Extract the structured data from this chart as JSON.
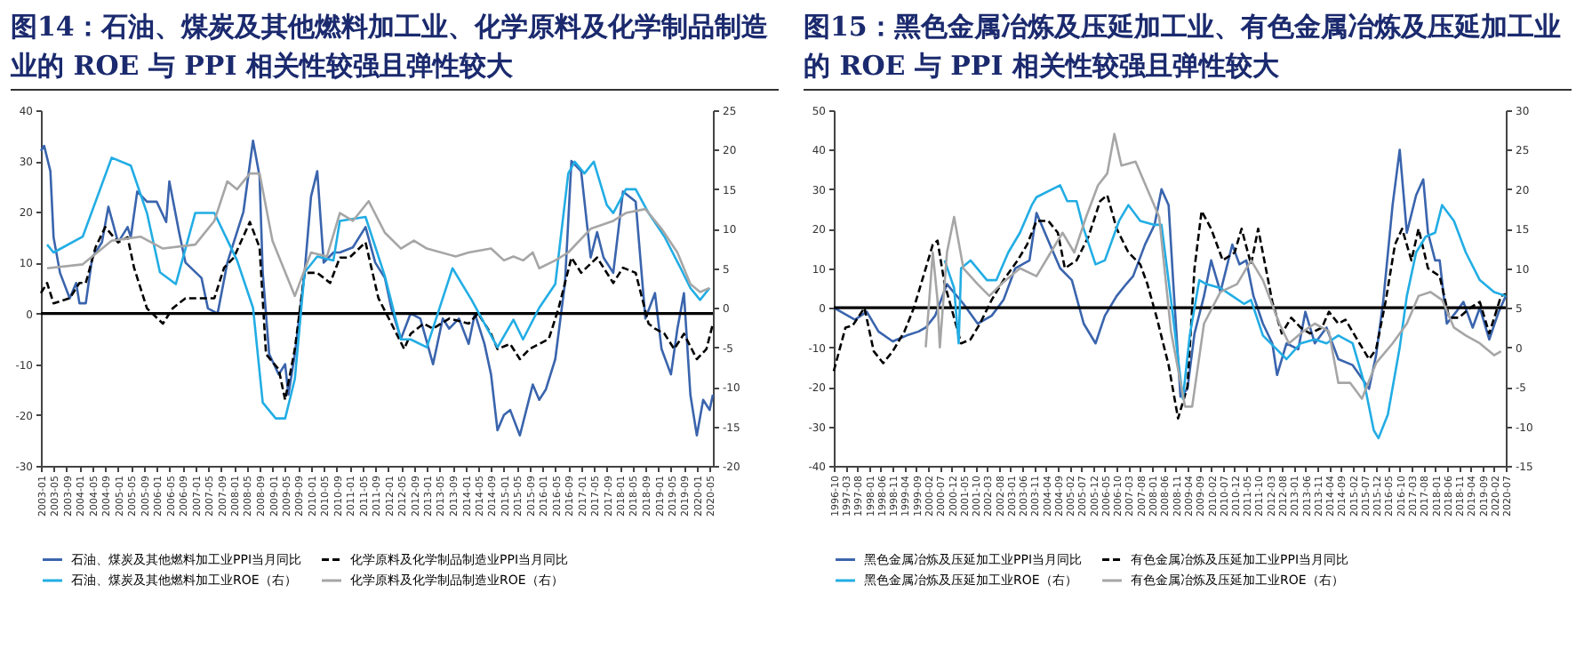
{
  "chart_data": [
    {
      "type": "line",
      "title": "图14：石油、煤炭及其他燃料加工业、化学原料及化学制品制造业的 ROE 与 PPI 相关性较强且弹性较大",
      "legend": "bottom",
      "xlim": [
        "2003-01",
        "2020-06"
      ],
      "xticks": [
        "2003-01",
        "2003-05",
        "2003-09",
        "2004-01",
        "2004-05",
        "2004-09",
        "2005-01",
        "2005-05",
        "2005-09",
        "2006-01",
        "2006-05",
        "2006-09",
        "2007-01",
        "2007-05",
        "2007-09",
        "2008-01",
        "2008-05",
        "2008-09",
        "2009-01",
        "2009-05",
        "2009-09",
        "2010-01",
        "2010-05",
        "2010-09",
        "2011-01",
        "2011-05",
        "2011-09",
        "2012-01",
        "2012-05",
        "2012-09",
        "2013-01",
        "2013-05",
        "2013-09",
        "2014-01",
        "2014-05",
        "2014-09",
        "2015-01",
        "2015-05",
        "2015-09",
        "2016-01",
        "2016-05",
        "2016-09",
        "2017-01",
        "2017-05",
        "2017-09",
        "2018-01",
        "2018-05",
        "2018-09",
        "2019-01",
        "2019-05",
        "2019-09",
        "2020-01",
        "2020-05"
      ],
      "ylim": [
        -30,
        40
      ],
      "yticks": [
        -30,
        -20,
        -10,
        0,
        10,
        20,
        30,
        40
      ],
      "y2lim": [
        -20,
        25
      ],
      "y2ticks": [
        -20,
        -15,
        -10,
        -5,
        0,
        5,
        10,
        15,
        20,
        25
      ],
      "ref_lines": [
        {
          "axis": "y",
          "value": 0,
          "color": "#000000"
        }
      ],
      "series": [
        {
          "name": "石油、煤炭及其他燃料加工业PPI当月同比",
          "color": "#3a64ad",
          "axis": "y",
          "line_style": "solid",
          "x": [
            "2003-01",
            "2003-02",
            "2003-04",
            "2003-05",
            "2003-07",
            "2003-10",
            "2003-12",
            "2004-01",
            "2004-03",
            "2004-05",
            "2004-08",
            "2004-10",
            "2005-01",
            "2005-04",
            "2005-05",
            "2005-07",
            "2005-10",
            "2006-01",
            "2006-04",
            "2006-05",
            "2006-08",
            "2006-10",
            "2007-03",
            "2007-05",
            "2007-08",
            "2007-11",
            "2008-04",
            "2008-07",
            "2008-09",
            "2008-10",
            "2008-12",
            "2009-03",
            "2009-05",
            "2009-06",
            "2009-08",
            "2009-11",
            "2010-01",
            "2010-03",
            "2010-05",
            "2010-08",
            "2010-10",
            "2011-02",
            "2011-06",
            "2011-09",
            "2011-12",
            "2012-02",
            "2012-05",
            "2012-08",
            "2012-11",
            "2013-03",
            "2013-06",
            "2013-08",
            "2013-11",
            "2014-02",
            "2014-04",
            "2014-07",
            "2014-09",
            "2014-11",
            "2015-01",
            "2015-03",
            "2015-06",
            "2015-08",
            "2015-10",
            "2015-12",
            "2016-02",
            "2016-05",
            "2016-08",
            "2016-10",
            "2017-01",
            "2017-04",
            "2017-06",
            "2017-08",
            "2017-11",
            "2018-02",
            "2018-06",
            "2018-09",
            "2018-12",
            "2019-02",
            "2019-05",
            "2019-07",
            "2019-09",
            "2019-11",
            "2020-01",
            "2020-03",
            "2020-05",
            "2020-06"
          ],
          "values": [
            32,
            33,
            28,
            15,
            8,
            3,
            6,
            2,
            2,
            11,
            14,
            21,
            14,
            17,
            15,
            24,
            22,
            22,
            18,
            26,
            16,
            10,
            7,
            1,
            0,
            10,
            20,
            34,
            27,
            8,
            -8,
            -12,
            -10,
            -16,
            -8,
            8,
            23,
            28,
            10,
            12,
            12,
            13,
            17,
            10,
            7,
            1,
            -5,
            0,
            -1,
            -10,
            -1,
            -3,
            -1,
            -6,
            0,
            -6,
            -12,
            -23,
            -20,
            -19,
            -24,
            -19,
            -14,
            -17,
            -15,
            -9,
            6,
            30,
            28,
            11,
            16,
            11,
            8,
            24,
            22,
            -1,
            4,
            -7,
            -12,
            -3,
            4,
            -16,
            -24,
            -17,
            -19,
            -16
          ]
        },
        {
          "name": "化学原料及化学制品制造业PPI当月同比",
          "color": "#000000",
          "axis": "y",
          "line_style": "dashed",
          "x": [
            "2003-01",
            "2003-03",
            "2003-05",
            "2003-10",
            "2004-01",
            "2004-03",
            "2004-06",
            "2004-09",
            "2005-01",
            "2005-04",
            "2005-06",
            "2005-10",
            "2006-03",
            "2006-06",
            "2006-10",
            "2007-03",
            "2007-07",
            "2007-10",
            "2008-01",
            "2008-06",
            "2008-09",
            "2008-11",
            "2009-03",
            "2009-05",
            "2009-08",
            "2009-11",
            "2010-03",
            "2010-07",
            "2010-10",
            "2011-01",
            "2011-06",
            "2011-10",
            "2012-02",
            "2012-06",
            "2012-08",
            "2012-12",
            "2013-03",
            "2013-08",
            "2014-02",
            "2014-05",
            "2014-09",
            "2014-11",
            "2015-03",
            "2015-06",
            "2015-09",
            "2015-12",
            "2016-03",
            "2016-06",
            "2016-10",
            "2017-01",
            "2017-06",
            "2017-11",
            "2018-02",
            "2018-06",
            "2018-10",
            "2018-12",
            "2019-03",
            "2019-06",
            "2019-09",
            "2020-01",
            "2020-04",
            "2020-06"
          ],
          "values": [
            4,
            6,
            2,
            3,
            6,
            6,
            13,
            17,
            14,
            15,
            9,
            1,
            -2,
            1,
            3,
            3,
            3,
            9,
            11,
            18,
            13,
            -8,
            -11,
            -17,
            -7,
            8,
            8,
            6,
            11,
            11,
            14,
            3,
            -2,
            -7,
            -4,
            -2,
            -3,
            -1,
            -2,
            0,
            -4,
            -7,
            -6,
            -9,
            -7,
            -6,
            -5,
            1,
            11,
            8,
            11,
            6,
            9,
            8,
            -2,
            -3,
            -4,
            -7,
            -4,
            -9,
            -7,
            -2
          ]
        },
        {
          "name": "石油、煤炭及其他燃料加工业ROE（右）",
          "color": "#22ade4",
          "axis": "y2",
          "line_style": "solid",
          "x": [
            "2003-03",
            "2003-05",
            "2004-02",
            "2004-11",
            "2005-05",
            "2005-10",
            "2006-02",
            "2006-07",
            "2007-01",
            "2007-07",
            "2008-02",
            "2008-07",
            "2008-10",
            "2009-02",
            "2009-05",
            "2009-08",
            "2009-11",
            "2010-03",
            "2010-08",
            "2010-10",
            "2011-06",
            "2011-08",
            "2011-12",
            "2012-05",
            "2012-08",
            "2013-01",
            "2013-09",
            "2014-03",
            "2014-09",
            "2014-11",
            "2015-04",
            "2015-07",
            "2015-12",
            "2016-05",
            "2016-09",
            "2016-11",
            "2017-02",
            "2017-05",
            "2017-09",
            "2017-11",
            "2018-03",
            "2018-06",
            "2018-10",
            "2019-03",
            "2019-08",
            "2019-11",
            "2020-02",
            "2020-05"
          ],
          "values": [
            8,
            7,
            9,
            19,
            18,
            12,
            4.5,
            3,
            12,
            12,
            6,
            0,
            -12,
            -14,
            -14,
            -9,
            4.5,
            6.5,
            6,
            11,
            11.5,
            9,
            4,
            -4,
            -4,
            -5,
            5,
            1,
            -3.5,
            -5,
            -1.5,
            -4,
            0,
            3,
            17,
            18.5,
            17,
            18.5,
            13,
            12,
            15,
            15,
            12,
            9,
            5,
            2.5,
            1,
            2.5
          ]
        },
        {
          "name": "化学原料及化学制品制造业ROE（右）",
          "color": "#a6a6a6",
          "axis": "y2",
          "line_style": "solid",
          "x": [
            "2003-03",
            "2004-02",
            "2004-11",
            "2005-08",
            "2006-03",
            "2007-01",
            "2007-07",
            "2007-11",
            "2008-02",
            "2008-06",
            "2008-09",
            "2009-01",
            "2009-08",
            "2010-01",
            "2010-06",
            "2010-10",
            "2011-02",
            "2011-07",
            "2011-12",
            "2012-05",
            "2012-09",
            "2013-01",
            "2013-10",
            "2014-02",
            "2014-09",
            "2015-01",
            "2015-04",
            "2015-07",
            "2015-10",
            "2015-12",
            "2016-05",
            "2016-09",
            "2017-04",
            "2017-11",
            "2018-03",
            "2018-09",
            "2019-02",
            "2019-07",
            "2019-11",
            "2020-02",
            "2020-05"
          ],
          "values": [
            5,
            5.5,
            8.5,
            9,
            7.5,
            8,
            11,
            16,
            15,
            17,
            17,
            8.5,
            1.5,
            7,
            6.5,
            12,
            11,
            13.5,
            9.5,
            7.5,
            8.5,
            7.5,
            6.5,
            7,
            7.5,
            6,
            6.5,
            6,
            7,
            5,
            6,
            7,
            10,
            11,
            12,
            12.5,
            10,
            7,
            3,
            2,
            2.5
          ]
        }
      ]
    },
    {
      "type": "line",
      "title": "图15：黑色金属冶炼及压延加工业、有色金属冶炼及压延加工业的 ROE 与 PPI 相关性较强且弹性较大",
      "legend": "bottom",
      "xlim": [
        "1996-10",
        "2020-07"
      ],
      "xticks": [
        "1996-10",
        "1997-03",
        "1997-08",
        "1998-01",
        "1998-06",
        "1998-11",
        "1999-04",
        "1999-09",
        "2000-02",
        "2000-07",
        "2000-12",
        "2001-05",
        "2001-10",
        "2002-03",
        "2002-08",
        "2003-01",
        "2003-06",
        "2003-11",
        "2004-04",
        "2004-09",
        "2005-02",
        "2005-07",
        "2005-12",
        "2006-05",
        "2006-10",
        "2007-03",
        "2007-08",
        "2008-01",
        "2008-06",
        "2008-11",
        "2009-04",
        "2009-09",
        "2010-02",
        "2010-07",
        "2010-12",
        "2011-05",
        "2011-10",
        "2012-03",
        "2012-08",
        "2013-01",
        "2013-06",
        "2013-11",
        "2014-04",
        "2014-09",
        "2015-02",
        "2015-07",
        "2015-12",
        "2016-05",
        "2016-10",
        "2017-03",
        "2017-08",
        "2018-01",
        "2018-06",
        "2018-11",
        "2019-04",
        "2019-09",
        "2020-02",
        "2020-07"
      ],
      "ylim": [
        -40,
        50
      ],
      "yticks": [
        -40,
        -30,
        -20,
        -10,
        0,
        10,
        20,
        30,
        40,
        50
      ],
      "y2lim": [
        -15,
        30
      ],
      "y2ticks": [
        -15,
        -10,
        -5,
        0,
        5,
        10,
        15,
        20,
        25,
        30
      ],
      "ref_lines": [
        {
          "axis": "y",
          "value": 0,
          "color": "#000000"
        }
      ],
      "series": [
        {
          "name": "黑色金属冶炼及压延加工业PPI当月同比",
          "color": "#3a64ad",
          "axis": "y",
          "line_style": "solid",
          "x": [
            "1996-10",
            "1997-07",
            "1997-12",
            "1998-05",
            "1998-11",
            "1999-05",
            "1999-10",
            "2000-01",
            "2000-05",
            "2000-10",
            "2001-05",
            "2001-11",
            "2002-05",
            "2002-10",
            "2003-03",
            "2003-09",
            "2003-12",
            "2004-05",
            "2004-10",
            "2005-03",
            "2005-08",
            "2006-01",
            "2006-05",
            "2006-10",
            "2007-02",
            "2007-05",
            "2007-10",
            "2008-02",
            "2008-05",
            "2008-08",
            "2008-10",
            "2009-01",
            "2009-04",
            "2009-07",
            "2009-11",
            "2010-02",
            "2010-06",
            "2010-11",
            "2011-02",
            "2011-05",
            "2011-08",
            "2011-12",
            "2012-04",
            "2012-06",
            "2012-10",
            "2013-03",
            "2013-06",
            "2013-10",
            "2014-03",
            "2014-08",
            "2015-02",
            "2015-05",
            "2015-09",
            "2015-12",
            "2016-03",
            "2016-07",
            "2016-10",
            "2017-01",
            "2017-05",
            "2017-08",
            "2017-10",
            "2018-01",
            "2018-03",
            "2018-06",
            "2018-10",
            "2019-01",
            "2019-05",
            "2019-08",
            "2019-12",
            "2020-04",
            "2020-07"
          ],
          "values": [
            0,
            -3,
            -1,
            -6,
            -8.5,
            -7,
            -6,
            -5,
            -2,
            6,
            1,
            -4,
            -2,
            2,
            10,
            12,
            24,
            17,
            10,
            7,
            -4,
            -9,
            -2,
            3,
            6,
            8,
            16,
            21,
            30,
            26,
            6,
            -22.5,
            -20.5,
            -6.5,
            3,
            12,
            4,
            16,
            11,
            12,
            3,
            -4,
            -9,
            -17,
            -9,
            -10.5,
            -1,
            -9,
            -5,
            -13,
            -14.5,
            -17,
            -20.5,
            -12,
            1.5,
            26,
            40,
            19,
            28.5,
            32.5,
            19,
            12,
            12,
            -4,
            -1,
            1.5,
            -5,
            0,
            -8,
            -1,
            3
          ]
        },
        {
          "name": "有色金属冶炼及压延加工业PPI当月同比",
          "color": "#000000",
          "axis": "y",
          "line_style": "dashed",
          "x": [
            "1996-10",
            "1997-03",
            "1997-06",
            "1997-11",
            "1998-03",
            "1998-07",
            "1998-11",
            "1999-04",
            "1999-08",
            "2000-01",
            "2000-04",
            "2000-06",
            "2000-09",
            "2001-01",
            "2001-04",
            "2001-08",
            "2001-12",
            "2002-05",
            "2002-10",
            "2003-04",
            "2003-08",
            "2003-12",
            "2004-05",
            "2004-09",
            "2004-12",
            "2005-05",
            "2005-10",
            "2006-03",
            "2006-06",
            "2006-10",
            "2007-03",
            "2007-08",
            "2007-11",
            "2008-03",
            "2008-08",
            "2008-12",
            "2009-04",
            "2009-07",
            "2009-10",
            "2010-02",
            "2010-07",
            "2010-12",
            "2011-03",
            "2011-07",
            "2011-10",
            "2012-04",
            "2012-08",
            "2012-12",
            "2013-04",
            "2013-08",
            "2014-01",
            "2014-04",
            "2014-08",
            "2014-11",
            "2015-05",
            "2015-09",
            "2015-12",
            "2016-04",
            "2016-08",
            "2016-11",
            "2017-03",
            "2017-06",
            "2017-10",
            "2018-03",
            "2018-07",
            "2018-11",
            "2019-04",
            "2019-08",
            "2019-12",
            "2020-05",
            "2020-07"
          ],
          "values": [
            -16,
            -5,
            -4.5,
            0,
            -11,
            -14,
            -11,
            -6,
            0,
            10,
            16,
            17,
            6,
            -2.5,
            -9,
            -8,
            -4,
            2,
            7,
            12,
            16,
            22,
            22,
            19,
            10,
            12,
            18,
            27,
            28.5,
            20,
            14,
            11,
            6,
            -2.5,
            -14.5,
            -28,
            -20,
            10,
            24.5,
            20,
            12,
            14,
            20,
            11,
            20,
            1.5,
            -6.5,
            -2.5,
            -5,
            -6.5,
            -5,
            -1,
            -4,
            -3,
            -9,
            -13,
            -10.5,
            1.5,
            16,
            20,
            12,
            20,
            10,
            8,
            -2.5,
            -2.5,
            0,
            1.5,
            -6.5,
            3,
            3.5
          ]
        },
        {
          "name": "黑色金属冶炼及压延加工业ROE（右）",
          "color": "#22ade4",
          "axis": "y2",
          "line_style": "solid",
          "x": [
            "2000-09",
            "2001-01",
            "2001-03",
            "2001-04",
            "2001-08",
            "2002-03",
            "2002-07",
            "2002-12",
            "2003-05",
            "2003-10",
            "2003-12",
            "2004-10",
            "2005-01",
            "2005-05",
            "2005-08",
            "2006-01",
            "2006-05",
            "2006-11",
            "2007-03",
            "2007-08",
            "2008-02",
            "2008-05",
            "2008-09",
            "2009-02",
            "2009-05",
            "2009-09",
            "2009-12",
            "2010-06",
            "2010-11",
            "2011-04",
            "2011-07",
            "2011-12",
            "2012-05",
            "2012-10",
            "2013-04",
            "2013-10",
            "2014-03",
            "2014-08",
            "2015-02",
            "2015-07",
            "2015-11",
            "2016-01",
            "2016-05",
            "2016-10",
            "2017-01",
            "2017-05",
            "2017-09",
            "2018-01",
            "2018-04",
            "2018-09",
            "2019-02",
            "2019-08",
            "2020-02",
            "2020-07"
          ],
          "values": [
            11,
            7.5,
            0.5,
            10,
            11,
            8.5,
            8.5,
            12,
            14.5,
            18,
            19,
            20.5,
            18.5,
            18.5,
            15,
            10.5,
            11,
            16,
            18,
            16,
            15.5,
            15.5,
            6,
            -6.5,
            1.5,
            8.5,
            8,
            7.5,
            6.5,
            5.5,
            6,
            1.5,
            0,
            -1.5,
            0.5,
            1,
            0.5,
            1.5,
            0.5,
            -4.5,
            -10.5,
            -11.5,
            -8.5,
            0,
            6.5,
            12,
            14,
            14.5,
            18,
            16,
            12,
            8.5,
            7,
            6.5
          ]
        },
        {
          "name": "有色金属冶炼及压延加工业ROE（右）",
          "color": "#a6a6a6",
          "axis": "y2",
          "line_style": "solid",
          "x": [
            "2000-01",
            "2000-04",
            "2000-06",
            "2000-07",
            "2000-10",
            "2001-01",
            "2001-05",
            "2001-11",
            "2002-04",
            "2002-09",
            "2003-05",
            "2003-12",
            "2004-06",
            "2004-11",
            "2005-04",
            "2005-09",
            "2006-02",
            "2006-06",
            "2006-09",
            "2006-12",
            "2007-06",
            "2007-11",
            "2008-04",
            "2008-09",
            "2009-03",
            "2009-06",
            "2009-11",
            "2010-06",
            "2011-01",
            "2011-07",
            "2011-12",
            "2012-07",
            "2012-11",
            "2013-05",
            "2013-10",
            "2014-04",
            "2014-08",
            "2015-01",
            "2015-06",
            "2015-12",
            "2016-07",
            "2017-01",
            "2017-06",
            "2017-11",
            "2018-04",
            "2018-09",
            "2019-02",
            "2019-08",
            "2020-02",
            "2020-05"
          ],
          "values": [
            0,
            12,
            6,
            0,
            12,
            16.5,
            10,
            8,
            6.5,
            8,
            10,
            9,
            12,
            14.5,
            12,
            16.5,
            20.5,
            22,
            27,
            23,
            23.5,
            20,
            16.5,
            2,
            -7.5,
            -7.5,
            3,
            7,
            8,
            11,
            8.5,
            3,
            0.5,
            2,
            3,
            2,
            -4.5,
            -4.5,
            -6.5,
            -2,
            0.5,
            3,
            6.5,
            7,
            6,
            2.5,
            1.5,
            0.5,
            -1,
            -0.5
          ]
        }
      ]
    }
  ]
}
